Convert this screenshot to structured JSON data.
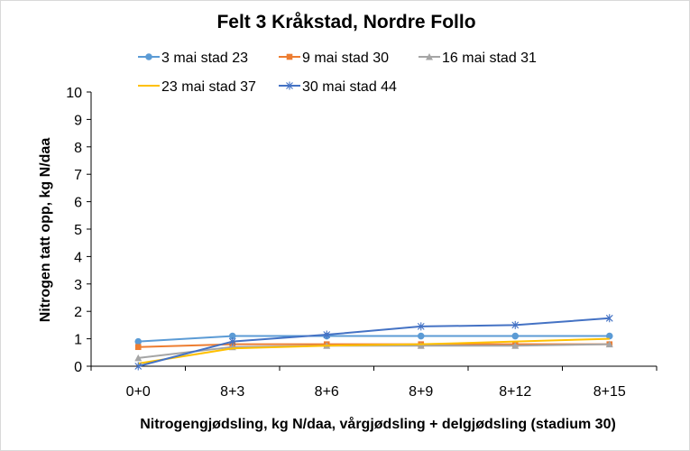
{
  "chart_data": {
    "type": "line",
    "title": "Felt 3 Kråkstad, Nordre Follo",
    "xlabel": "Nitrogengjødsling, kg N/daa, vårgjødsling + delgjødsling (stadium 30)",
    "ylabel": "Nitrogen tatt opp, kg N/daa",
    "categories": [
      "0+0",
      "8+3",
      "8+6",
      "8+9",
      "8+12",
      "8+15"
    ],
    "ylim": [
      0,
      10
    ],
    "yticks": [
      0,
      1,
      2,
      3,
      4,
      5,
      6,
      7,
      8,
      9,
      10
    ],
    "grid": false,
    "legend_position": "top",
    "series": [
      {
        "name": "3 mai stad 23",
        "color": "#5b9bd5",
        "marker": "circle",
        "values": [
          0.9,
          1.1,
          1.1,
          1.1,
          1.1,
          1.1
        ]
      },
      {
        "name": "9 mai stad 30",
        "color": "#ed7d31",
        "marker": "square",
        "values": [
          0.7,
          0.8,
          0.8,
          0.8,
          0.8,
          0.8
        ]
      },
      {
        "name": "16 mai stad 31",
        "color": "#a5a5a5",
        "marker": "triangle",
        "values": [
          0.3,
          0.7,
          0.75,
          0.75,
          0.75,
          0.8
        ]
      },
      {
        "name": "23 mai  stad 37",
        "color": "#ffc000",
        "marker": "none",
        "values": [
          0.1,
          0.65,
          0.75,
          0.8,
          0.9,
          1.0
        ]
      },
      {
        "name": "30 mai stad 44",
        "color": "#4472c4",
        "marker": "star",
        "values": [
          0.0,
          0.9,
          1.15,
          1.45,
          1.5,
          1.75
        ]
      }
    ]
  }
}
